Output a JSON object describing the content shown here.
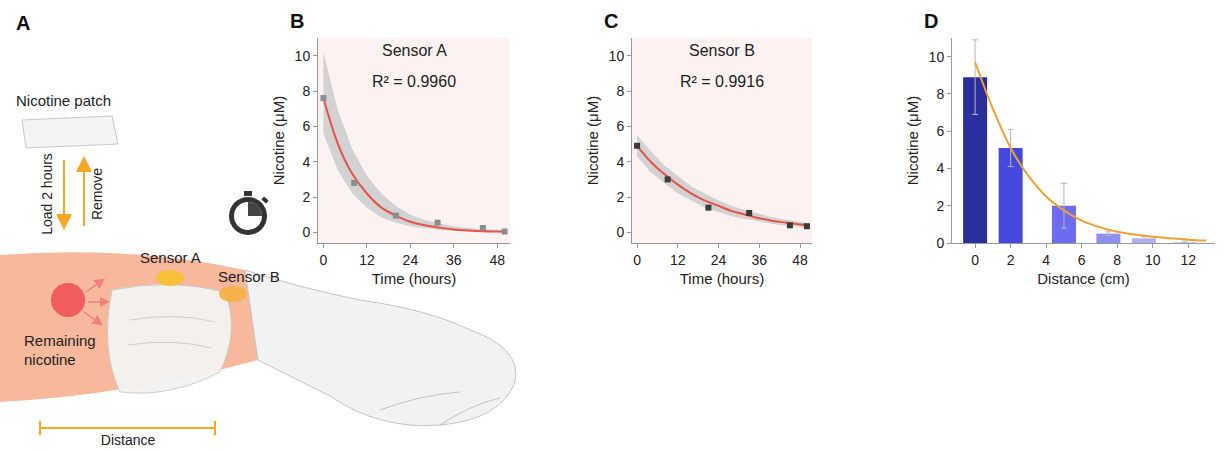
{
  "diagram": {
    "panel_label": "A",
    "patch": "Nicotine patch",
    "load": "Load 2 hours",
    "remove": "Remove",
    "sensors": [
      "Sensor A",
      "Sensor B"
    ],
    "source": "Remaining nicotine",
    "distance": "Distance"
  },
  "chart_data": [
    {
      "panel_label": "B",
      "type": "scatter",
      "title": "Sensor A",
      "annotations": [
        "R² = 0.9960"
      ],
      "x_label": "Time (hours)",
      "y_label": "Nicotine (μM)",
      "xlim": [
        -1.5,
        51.5
      ],
      "xticks": [
        0,
        12,
        24,
        36,
        48
      ],
      "ylim": [
        -0.6,
        11
      ],
      "yticks": [
        0,
        2,
        4,
        6,
        8,
        10
      ],
      "grid": false,
      "series": [
        {
          "type": "band",
          "color": "#d2d2d2",
          "x": [
            0,
            4,
            8,
            12,
            16,
            20,
            24,
            28,
            32,
            36,
            40,
            44,
            48,
            50
          ],
          "upper": [
            10.2,
            6.9,
            4.7,
            3.2,
            2.2,
            1.5,
            1.0,
            0.7,
            0.5,
            0.35,
            0.25,
            0.18,
            0.13,
            0.11
          ],
          "lower": [
            5.6,
            3.5,
            2.2,
            1.4,
            0.85,
            0.55,
            0.35,
            0.22,
            0.13,
            0.08,
            0.05,
            0.03,
            0.02,
            0.01
          ]
        },
        {
          "type": "line",
          "color": "#e8504a",
          "x": [
            0,
            4,
            8,
            12,
            16,
            20,
            24,
            28,
            32,
            36,
            40,
            44,
            48,
            50
          ],
          "values": [
            7.6,
            5.0,
            3.3,
            2.2,
            1.4,
            0.95,
            0.6,
            0.4,
            0.27,
            0.17,
            0.11,
            0.07,
            0.05,
            0.04
          ]
        },
        {
          "type": "scatter",
          "marker": "square",
          "color": "#8c8c8c",
          "x": [
            0,
            8.5,
            20,
            31.5,
            44,
            50
          ],
          "values": [
            7.6,
            2.8,
            0.95,
            0.55,
            0.25,
            0.05
          ]
        }
      ]
    },
    {
      "panel_label": "C",
      "type": "scatter",
      "title": "Sensor B",
      "annotations": [
        "R² = 0.9916"
      ],
      "x_label": "Time (hours)",
      "y_label": "Nicotine (μM)",
      "xlim": [
        -1.5,
        51.5
      ],
      "xticks": [
        0,
        12,
        24,
        36,
        48
      ],
      "ylim": [
        -0.6,
        11
      ],
      "yticks": [
        0,
        2,
        4,
        6,
        8,
        10
      ],
      "grid": false,
      "series": [
        {
          "type": "band",
          "color": "#d2d2d2",
          "x": [
            0,
            4,
            8,
            12,
            16,
            20,
            24,
            28,
            32,
            36,
            40,
            44,
            48,
            50
          ],
          "upper": [
            5.5,
            4.6,
            3.8,
            3.2,
            2.6,
            2.2,
            1.8,
            1.5,
            1.25,
            1.05,
            0.85,
            0.72,
            0.6,
            0.55
          ],
          "lower": [
            4.3,
            3.4,
            2.8,
            2.2,
            1.8,
            1.4,
            1.15,
            0.9,
            0.75,
            0.6,
            0.48,
            0.38,
            0.32,
            0.28
          ]
        },
        {
          "type": "line",
          "color": "#e8504a",
          "x": [
            0,
            4,
            8,
            12,
            16,
            20,
            24,
            28,
            32,
            36,
            40,
            44,
            48,
            50
          ],
          "values": [
            4.9,
            4.0,
            3.3,
            2.7,
            2.2,
            1.8,
            1.5,
            1.2,
            1.0,
            0.8,
            0.65,
            0.55,
            0.45,
            0.4
          ]
        },
        {
          "type": "scatter",
          "marker": "square",
          "color": "#3a3a3a",
          "x": [
            0,
            9,
            21,
            33,
            45,
            50
          ],
          "values": [
            4.9,
            3.0,
            1.4,
            1.1,
            0.4,
            0.35
          ]
        }
      ]
    },
    {
      "panel_label": "D",
      "type": "bar",
      "x_label": "Distance (cm)",
      "y_label": "Nicotine (μM)",
      "xlim": [
        -1.3,
        13.5
      ],
      "xticks": [
        0,
        2,
        4,
        6,
        8,
        10,
        12
      ],
      "ylim": [
        0,
        11
      ],
      "yticks": [
        0,
        2,
        4,
        6,
        8,
        10
      ],
      "grid": false,
      "series": [
        {
          "type": "bar",
          "x": [
            0,
            2,
            5,
            7.5,
            9.5,
            11.8
          ],
          "values": [
            8.9,
            5.1,
            2.0,
            0.5,
            0.25,
            0.05
          ],
          "error": [
            2.0,
            1.0,
            1.2,
            0.1,
            0.1,
            0.05
          ],
          "colors": [
            "#2b2f9e",
            "#4649e0",
            "#6b6cf0",
            "#8e8ff2",
            "#adaef3",
            "#cdd0f6"
          ]
        },
        {
          "type": "line",
          "color": "#f0a030",
          "x": [
            0,
            1,
            2,
            3,
            4,
            5,
            6,
            7,
            8,
            9,
            10,
            11,
            12,
            13
          ],
          "values": [
            9.7,
            7.2,
            5.1,
            3.6,
            2.5,
            1.75,
            1.2,
            0.85,
            0.6,
            0.45,
            0.33,
            0.25,
            0.18,
            0.13
          ]
        }
      ]
    }
  ]
}
